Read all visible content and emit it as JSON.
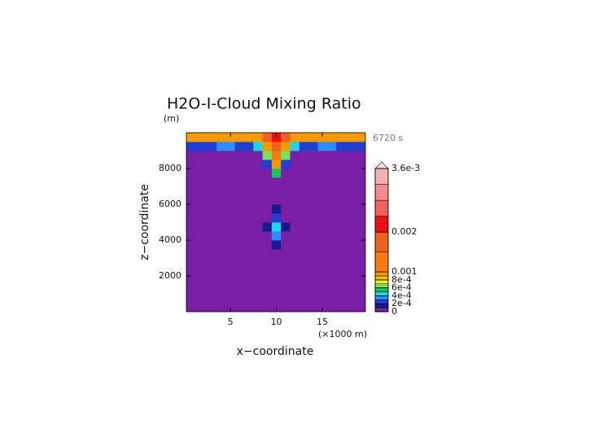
{
  "chart_data": {
    "type": "contour",
    "title": "H2O-I-Cloud Mixing Ratio",
    "y_unit": "(m)",
    "time_label": "6720 s",
    "xlabel": "x−coordinate",
    "ylabel": "z−coordinate",
    "x_unit": "(×1000 m)",
    "xlim": [
      0.2,
      19.7
    ],
    "xticks": [
      5,
      10,
      15
    ],
    "ylim": [
      0,
      10000
    ],
    "yticks": [
      2000,
      4000,
      6000,
      8000
    ],
    "x": [
      0,
      1,
      2,
      3,
      4,
      5,
      6,
      7,
      8,
      9,
      10,
      11,
      12,
      13,
      14,
      15,
      16,
      17,
      18,
      19,
      20
    ],
    "y": [
      250,
      750,
      1250,
      1750,
      2250,
      2750,
      3250,
      3750,
      4250,
      4750,
      5250,
      5750,
      6250,
      6750,
      7250,
      7750,
      8250,
      8750,
      9250,
      9750
    ],
    "z": [
      [
        0,
        0,
        0,
        0,
        0,
        0,
        0,
        0,
        0,
        0,
        0,
        0,
        0,
        0,
        0,
        0,
        0,
        0,
        0,
        0,
        0
      ],
      [
        0,
        0,
        0,
        0,
        0,
        0,
        0,
        0,
        0,
        0,
        0,
        0,
        0,
        0,
        0,
        0,
        0,
        0,
        0,
        0,
        0
      ],
      [
        0,
        0,
        0,
        0,
        0,
        0,
        0,
        0,
        0,
        0,
        0,
        0,
        0,
        0,
        0,
        0,
        0,
        0,
        0,
        0,
        0
      ],
      [
        0,
        0,
        0,
        0,
        0,
        0,
        0,
        0,
        0,
        0,
        0,
        0,
        0,
        0,
        0,
        0,
        0,
        0,
        0,
        0,
        0
      ],
      [
        0,
        0,
        0,
        0,
        0,
        0,
        0,
        0,
        0,
        0,
        0,
        0,
        0,
        0,
        0,
        0,
        0,
        0,
        0,
        0,
        0
      ],
      [
        0,
        0,
        0,
        0,
        0,
        0,
        0,
        0,
        0,
        0,
        0,
        0,
        0,
        0,
        0,
        0,
        0,
        0,
        0,
        0,
        0
      ],
      [
        0,
        0,
        0,
        0,
        0,
        0,
        0,
        0,
        0,
        0,
        0,
        0,
        0,
        0,
        0,
        0,
        0,
        0,
        0,
        0,
        0
      ],
      [
        0,
        0,
        0,
        0,
        0,
        0,
        0,
        0,
        0,
        0,
        0.0001,
        0,
        0,
        0,
        0,
        0,
        0,
        0,
        0,
        0,
        0
      ],
      [
        0,
        0,
        0,
        0,
        0,
        0,
        0,
        0,
        0,
        0,
        0.0003,
        0,
        0,
        0,
        0,
        0,
        0,
        0,
        0,
        0,
        0
      ],
      [
        0,
        0,
        0,
        0,
        0,
        0,
        0,
        0,
        0,
        0.0001,
        0.0004,
        0.0001,
        0,
        0,
        0,
        0,
        0,
        0,
        0,
        0,
        0
      ],
      [
        0,
        0,
        0,
        0,
        0,
        0,
        0,
        0,
        0,
        0,
        0.0002,
        0,
        0,
        0,
        0,
        0,
        0,
        0,
        0,
        0,
        0
      ],
      [
        0,
        0,
        0,
        0,
        0,
        0,
        0,
        0,
        0,
        0,
        0.0001,
        0,
        0,
        0,
        0,
        0,
        0,
        0,
        0,
        0,
        0
      ],
      [
        0,
        0,
        0,
        0,
        0,
        0,
        0,
        0,
        0,
        0,
        0,
        0,
        0,
        0,
        0,
        0,
        0,
        0,
        0,
        0,
        0
      ],
      [
        0,
        0,
        0,
        0,
        0,
        0,
        0,
        0,
        0,
        0,
        0,
        0,
        0,
        0,
        0,
        0,
        0,
        0,
        0,
        0,
        0
      ],
      [
        0,
        0,
        0,
        0,
        0,
        0,
        0,
        0,
        0,
        0,
        0,
        0,
        0,
        0,
        0,
        0,
        0,
        0,
        0,
        0,
        0
      ],
      [
        0,
        0,
        0,
        0,
        0,
        0,
        0,
        0,
        0,
        0,
        0.0005,
        0,
        0,
        0,
        0,
        0,
        0,
        0,
        0,
        0,
        0
      ],
      [
        0,
        0,
        0,
        0,
        0,
        0,
        0,
        0,
        0,
        0.0002,
        0.0009,
        0.0002,
        0,
        0,
        0,
        0,
        0,
        0,
        0,
        0,
        0
      ],
      [
        0,
        0,
        0,
        0,
        0,
        0,
        0,
        0,
        0,
        0.0006,
        0.0012,
        0.0006,
        0,
        0,
        0,
        0,
        0,
        0,
        0,
        0,
        0
      ],
      [
        0.0002,
        0.0002,
        0.0002,
        0.0002,
        0.0003,
        0.0003,
        0.0002,
        0.0002,
        0.0004,
        0.0009,
        0.0015,
        0.0009,
        0.0004,
        0.0002,
        0.0002,
        0.0003,
        0.0003,
        0.0002,
        0.0002,
        0.0002,
        0.0002
      ],
      [
        0.0009,
        0.0009,
        0.0009,
        0.0009,
        0.0009,
        0.0009,
        0.0009,
        0.0009,
        0.0009,
        0.0015,
        0.0022,
        0.0015,
        0.0009,
        0.0009,
        0.0009,
        0.0009,
        0.0009,
        0.0009,
        0.0009,
        0.0009,
        0.0009
      ]
    ],
    "levels": [
      0,
      0.0001,
      0.0002,
      0.0003,
      0.0004,
      0.0005,
      0.0006,
      0.0007,
      0.0008,
      0.0009,
      0.001,
      0.0015,
      0.002,
      0.0024,
      0.0028,
      0.0032,
      0.0036
    ],
    "colors": [
      "#7a1fa8",
      "#1a1a90",
      "#1f3fd6",
      "#2a8cff",
      "#1ed8e8",
      "#18c060",
      "#7ee060",
      "#f0f020",
      "#f5c000",
      "#f59a00",
      "#f57a10",
      "#f06020",
      "#e81010",
      "#f26060",
      "#f58a8a",
      "#f7b0b0"
    ],
    "extend_color": "#fde4e4",
    "clim": [
      0,
      0.0036
    ],
    "cticks": [
      0,
      {
        "value": 0.0002,
        "label": "2e-4"
      },
      {
        "value": 0.0004,
        "label": "4e-4"
      },
      {
        "value": 0.0006,
        "label": "6e-4"
      },
      {
        "value": 0.0008,
        "label": "8e-4"
      },
      0.001,
      0.002,
      {
        "value": 0.0036,
        "label": "3.6e-3"
      }
    ]
  }
}
